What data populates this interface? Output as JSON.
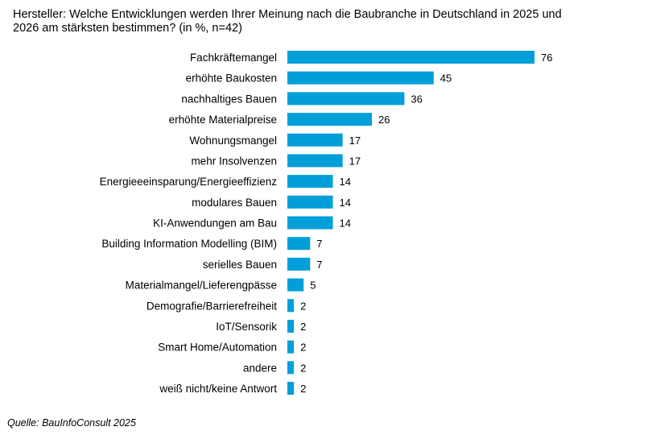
{
  "title": "Hersteller: Welche Entwicklungen werden Ihrer Meinung nach die Baubranche in Deutschland in 2025 und 2026 am stärksten bestimmen? (in %, n=42)",
  "source": "Quelle: BauInfoConsult 2025",
  "chart_data": {
    "type": "bar",
    "orientation": "horizontal",
    "title": "Hersteller: Welche Entwicklungen werden Ihrer Meinung nach die Baubranche in Deutschland in 2025 und 2026 am stärksten bestimmen? (in %, n=42)",
    "categories": [
      "Fachkräftemangel",
      "erhöhte Baukosten",
      "nachhaltiges Bauen",
      "erhöhte Materialpreise",
      "Wohnungsmangel",
      "mehr Insolvenzen",
      "Energieeeinsparung/Energieeffizienz",
      "modulares Bauen",
      "KI-Anwendungen am Bau",
      "Building Information Modelling (BIM)",
      "serielles Bauen",
      "Materialmangel/Lieferengpässe",
      "Demografie/Barrierefreiheit",
      "IoT/Sensorik",
      "Smart Home/Automation",
      "andere",
      "weiß nicht/keine Antwort"
    ],
    "values": [
      76,
      45,
      36,
      26,
      17,
      17,
      14,
      14,
      14,
      7,
      7,
      5,
      2,
      2,
      2,
      2,
      2
    ],
    "xlabel": "",
    "ylabel": "",
    "xlim": [
      0,
      76
    ],
    "grid": false,
    "data_labels": true,
    "bar_color": "#009fda"
  }
}
